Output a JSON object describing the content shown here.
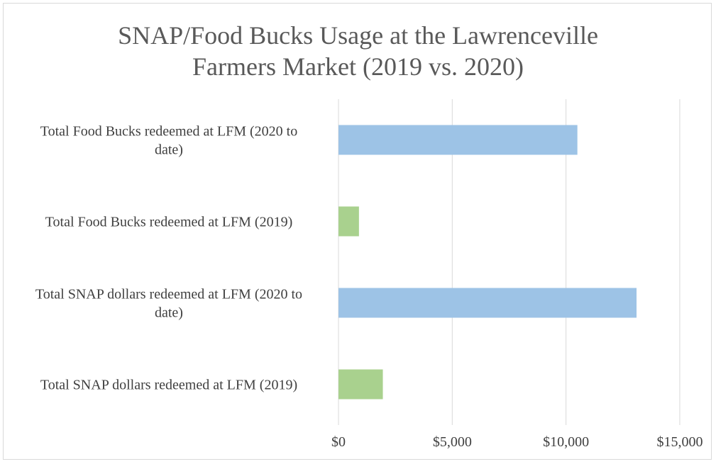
{
  "chart_data": {
    "type": "bar",
    "orientation": "horizontal",
    "title": "SNAP/Food Bucks Usage at the Lawrenceville\nFarmers Market (2019 vs. 2020)",
    "xlabel": "",
    "ylabel": "",
    "categories": [
      "Total Food Bucks redeemed at LFM (2020 to date)",
      "Total Food Bucks redeemed at LFM (2019)",
      "Total SNAP dollars redeemed at LFM (2020 to date)",
      "Total SNAP dollars redeemed at LFM (2019)"
    ],
    "values": [
      10500,
      900,
      13100,
      1950
    ],
    "colors": [
      "#9dc3e6",
      "#a9d18e",
      "#9dc3e6",
      "#a9d18e"
    ],
    "xlim": [
      0,
      16000
    ],
    "ticks": [
      0,
      5000,
      10000,
      15000
    ],
    "tick_labels": [
      "$0",
      "$5,000",
      "$10,000",
      "$15,000"
    ],
    "grid": true,
    "legend": "none"
  }
}
